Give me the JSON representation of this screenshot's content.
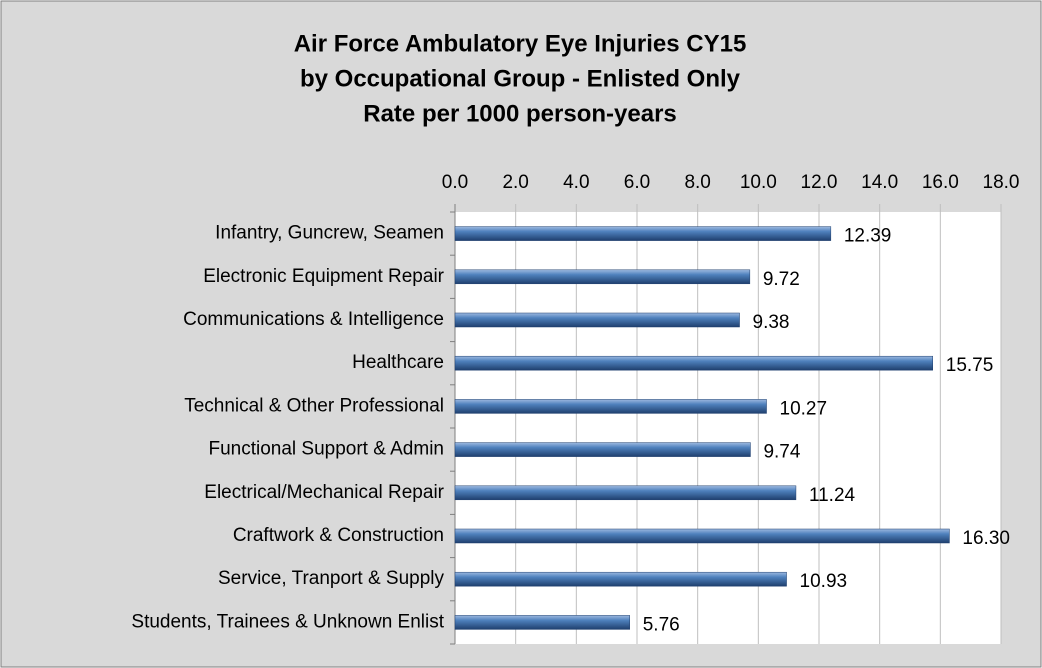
{
  "chart_data": {
    "type": "bar",
    "orientation": "horizontal",
    "title": [
      "Air Force Ambulatory Eye Injuries CY15",
      "by Occupational Group - Enlisted Only",
      "Rate per 1000 person-years"
    ],
    "categories": [
      "Infantry, Guncrew, Seamen",
      "Electronic Equipment Repair",
      "Communications & Intelligence",
      "Healthcare",
      "Technical & Other Professional",
      "Functional Support & Admin",
      "Electrical/Mechanical Repair",
      "Craftwork & Construction",
      "Service, Tranport & Supply",
      "Students, Trainees & Unknown Enlist"
    ],
    "values": [
      12.39,
      9.72,
      9.38,
      15.75,
      10.27,
      9.74,
      11.24,
      16.3,
      10.93,
      5.76
    ],
    "value_labels": [
      "12.39",
      "9.72",
      "9.38",
      "15.75",
      "10.27",
      "9.74",
      "11.24",
      "16.30",
      "10.93",
      "5.76"
    ],
    "color": "#4f81bd",
    "xlim": [
      0,
      18
    ],
    "xticks": [
      {
        "value": 0,
        "label": "0.0"
      },
      {
        "value": 2,
        "label": "2.0"
      },
      {
        "value": 4,
        "label": "4.0"
      },
      {
        "value": 6,
        "label": "6.0"
      },
      {
        "value": 8,
        "label": "8.0"
      },
      {
        "value": 10,
        "label": "10.0"
      },
      {
        "value": 12,
        "label": "12.0"
      },
      {
        "value": 14,
        "label": "14.0"
      },
      {
        "value": 16,
        "label": "16.0"
      },
      {
        "value": 18,
        "label": "18.0"
      }
    ],
    "grid": true
  }
}
